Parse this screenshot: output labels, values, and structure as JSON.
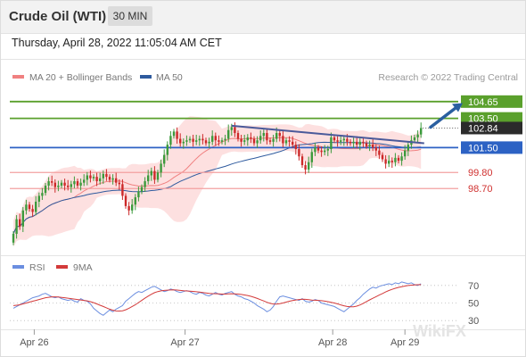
{
  "header": {
    "instrument": "Crude Oil (WTI)",
    "timeframe": "30 MIN"
  },
  "datetime": "Thursday, April 28, 2022 11:05:04 AM CET",
  "copyright": "Research © 2022 Trading Central",
  "watermark": "WikiFX",
  "colors": {
    "ma20": "#f08080",
    "ma50": "#2e5a9e",
    "band_fill": "#fde0e0",
    "resistance": "#5aa02c",
    "pivot": "#2d62c4",
    "support": "#f3a0a0",
    "support_text": "#d0302f",
    "candle_up": "#3c9a3c",
    "candle_down": "#cc2929",
    "trendline": "#4a5a9a",
    "arrow": "#2a5fa0",
    "rsi": "#6b8ee0",
    "rsi_ma": "#d33a3a"
  },
  "chart_data": [
    {
      "type": "candlestick",
      "title": "Crude Oil (WTI)",
      "interval": "30 MIN",
      "legend": [
        {
          "name": "MA 20 + Bollinger Bands",
          "color": "#f08080"
        },
        {
          "name": "MA 50",
          "color": "#2e5a9e"
        }
      ],
      "legend_position": "top-left",
      "x_ticks": [
        "Apr 26",
        "Apr 27",
        "Apr 28",
        "Apr 29"
      ],
      "x_tick_index": [
        6.5,
        53.5,
        99.5,
        122
      ],
      "y_range": [
        94.5,
        105.8
      ],
      "current_price": 102.84,
      "levels": [
        {
          "value": 104.65,
          "label": "104.65",
          "role": "resistance"
        },
        {
          "value": 103.5,
          "label": "103.50",
          "role": "resistance"
        },
        {
          "value": 101.5,
          "label": "101.50",
          "role": "pivot"
        },
        {
          "value": 99.8,
          "label": "99.80",
          "role": "support"
        },
        {
          "value": 98.7,
          "label": "98.70",
          "role": "support"
        }
      ],
      "trendline": {
        "from": [
          68,
          103.0
        ],
        "to": [
          128,
          101.8
        ]
      },
      "arrow": {
        "from": [
          130,
          102.9
        ],
        "to": [
          140,
          104.55
        ]
      },
      "candles_close": [
        95.6,
        96.6,
        96.1,
        97.2,
        97.6,
        97.3,
        97.1,
        97.8,
        98.2,
        98.4,
        98.9,
        99.2,
        99.1,
        98.8,
        98.9,
        99.1,
        98.9,
        98.8,
        99.0,
        99.2,
        98.9,
        99.1,
        99.3,
        99.6,
        99.4,
        99.5,
        99.2,
        99.4,
        99.7,
        99.5,
        99.3,
        99.4,
        99.1,
        99.0,
        98.2,
        97.5,
        97.2,
        97.6,
        98.1,
        98.5,
        98.8,
        99.2,
        99.6,
        99.9,
        99.3,
        99.8,
        100.4,
        101.0,
        101.7,
        102.3,
        102.6,
        102.1,
        101.8,
        101.9,
        102.0,
        102.1,
        101.9,
        102.0,
        102.1,
        102.0,
        101.8,
        101.9,
        102.3,
        102.0,
        101.9,
        102.0,
        102.1,
        102.7,
        102.9,
        102.5,
        102.1,
        101.9,
        102.0,
        102.2,
        102.1,
        101.8,
        102.0,
        102.3,
        102.5,
        102.0,
        101.9,
        102.1,
        102.5,
        102.3,
        101.8,
        102.0,
        101.9,
        101.7,
        101.4,
        100.9,
        100.3,
        100.0,
        100.5,
        101.2,
        101.5,
        101.3,
        101.2,
        101.3,
        101.4,
        102.2,
        102.0,
        101.9,
        102.0,
        102.1,
        101.9,
        101.8,
        101.9,
        101.7,
        101.9,
        101.8,
        101.6,
        101.7,
        101.5,
        101.3,
        101.0,
        100.7,
        100.4,
        100.6,
        100.5,
        100.8,
        100.6,
        100.9,
        101.3,
        101.7,
        102.0,
        102.2,
        102.4,
        102.84
      ]
    },
    {
      "type": "line",
      "title": "RSI",
      "series": [
        {
          "name": "RSI",
          "color": "#6b8ee0"
        },
        {
          "name": "9MA",
          "color": "#d33a3a"
        }
      ],
      "y_range": [
        20,
        80
      ],
      "y_ticks": [
        70,
        50,
        30
      ],
      "rsi": [
        44,
        46,
        48,
        50,
        52,
        54,
        56,
        57,
        58,
        60,
        61,
        59,
        57,
        56,
        57,
        55,
        54,
        53,
        54,
        52,
        51,
        55,
        53,
        52,
        49,
        44,
        41,
        38,
        36,
        39,
        42,
        40,
        43,
        45,
        47,
        52,
        55,
        58,
        61,
        63,
        62,
        64,
        66,
        68,
        69,
        67,
        65,
        63,
        64,
        66,
        65,
        63,
        62,
        63,
        64,
        63,
        61,
        60,
        62,
        61,
        59,
        58,
        60,
        62,
        60,
        59,
        61,
        62,
        63,
        60,
        58,
        57,
        55,
        54,
        52,
        50,
        47,
        45,
        43,
        40,
        42,
        46,
        52,
        57,
        58,
        57,
        56,
        55,
        54,
        53,
        55,
        52,
        51,
        52,
        54,
        53,
        50,
        49,
        48,
        47,
        46,
        44,
        42,
        40,
        43,
        46,
        49,
        53,
        56,
        60,
        63,
        66,
        68,
        67,
        69,
        70,
        71,
        72,
        71,
        73,
        72,
        74,
        73,
        72,
        73,
        71,
        70,
        72
      ],
      "ma9": [
        47,
        47.5,
        48,
        49,
        50,
        51,
        52,
        53,
        54,
        55,
        56,
        56.5,
        57,
        57,
        56.8,
        56.4,
        56,
        55.5,
        55,
        54.5,
        54,
        53.5,
        53,
        52.4,
        51.5,
        50.4,
        49,
        47.5,
        46,
        44.5,
        43,
        41.8,
        41,
        40.8,
        41.2,
        42.3,
        44,
        46,
        48,
        50.5,
        53,
        55.5,
        57.8,
        60,
        61.8,
        63,
        63.8,
        64.3,
        64.6,
        64.8,
        64.9,
        64.7,
        64.3,
        63.9,
        63.7,
        63.5,
        63.2,
        62.8,
        62.4,
        62,
        61.5,
        61,
        60.7,
        60.6,
        60.4,
        60.2,
        60.2,
        60.4,
        60.6,
        60.5,
        60.2,
        59.8,
        59.2,
        58.5,
        57.6,
        56.5,
        55.2,
        53.8,
        52.3,
        50.8,
        49.6,
        48.9,
        48.8,
        49.2,
        50,
        51,
        52,
        52.8,
        53.5,
        54,
        54.3,
        54.2,
        53.8,
        53.4,
        53.2,
        53,
        52.6,
        52.1,
        51.5,
        50.8,
        50,
        49,
        47.9,
        46.8,
        46,
        45.6,
        45.7,
        46.4,
        47.8,
        49.6,
        51.6,
        53.6,
        55.4,
        57.2,
        59,
        60.8,
        62.6,
        64.2,
        65.6,
        66.8,
        67.8,
        68.6,
        69.3,
        69.9,
        70.3,
        70.6,
        70.8,
        71
      ]
    }
  ]
}
